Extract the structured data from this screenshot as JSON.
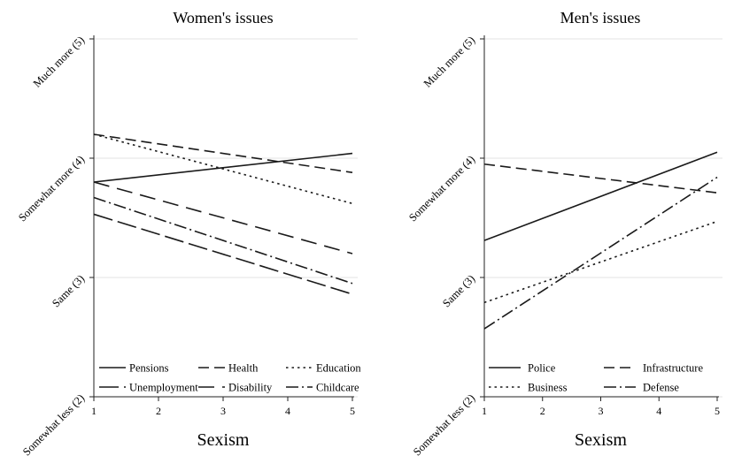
{
  "chart_data": [
    {
      "type": "line",
      "title": "Women's issues",
      "xlabel": "Sexism",
      "ylabel": "",
      "x": [
        1,
        5
      ],
      "xticks": [
        "1",
        "2",
        "3",
        "4",
        "5"
      ],
      "ylim": [
        2,
        5
      ],
      "yticks": [
        {
          "value": 2,
          "label": "Somewhat less (2)"
        },
        {
          "value": 3,
          "label": "Same (3)"
        },
        {
          "value": 4,
          "label": "Somewhat more (4)"
        },
        {
          "value": 5,
          "label": "Much more (5)"
        }
      ],
      "grid": true,
      "legend_position": "bottom-inside",
      "series": [
        {
          "name": "Pensions",
          "style": "solid",
          "values": [
            3.8,
            4.04
          ]
        },
        {
          "name": "Health",
          "style": "dash",
          "values": [
            4.2,
            3.88
          ]
        },
        {
          "name": "Education",
          "style": "dot",
          "values": [
            4.2,
            3.62
          ]
        },
        {
          "name": "Unemployment",
          "style": "longdash",
          "values": [
            3.53,
            2.86
          ]
        },
        {
          "name": "Disability",
          "style": "longdash2",
          "values": [
            3.8,
            3.2
          ]
        },
        {
          "name": "Childcare",
          "style": "dashdot",
          "values": [
            3.67,
            2.95
          ]
        }
      ]
    },
    {
      "type": "line",
      "title": "Men's issues",
      "xlabel": "Sexism",
      "ylabel": "",
      "x": [
        1,
        5
      ],
      "xticks": [
        "1",
        "2",
        "3",
        "4",
        "5"
      ],
      "ylim": [
        2,
        5
      ],
      "yticks": [
        {
          "value": 2,
          "label": "Somewhat less (2)"
        },
        {
          "value": 3,
          "label": "Same (3)"
        },
        {
          "value": 4,
          "label": "Somewhat more (4)"
        },
        {
          "value": 5,
          "label": "Much more (5)"
        }
      ],
      "grid": true,
      "legend_position": "bottom-inside",
      "series": [
        {
          "name": "Police",
          "style": "solid",
          "values": [
            3.31,
            4.05
          ]
        },
        {
          "name": "Infrastructure",
          "style": "dash",
          "values": [
            3.95,
            3.71
          ]
        },
        {
          "name": "Business",
          "style": "dot",
          "values": [
            2.79,
            3.47
          ]
        },
        {
          "name": "Defense",
          "style": "dashdot",
          "values": [
            2.57,
            3.84
          ]
        }
      ]
    }
  ]
}
